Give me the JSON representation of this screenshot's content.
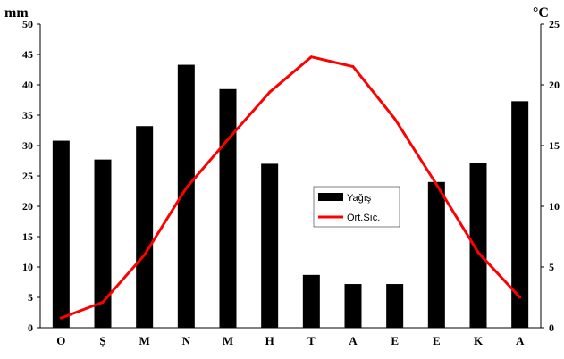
{
  "chart_data": {
    "type": "bar",
    "categories": [
      "O",
      "Ş",
      "M",
      "N",
      "M",
      "H",
      "T",
      "A",
      "E",
      "E",
      "K",
      "A"
    ],
    "series": [
      {
        "name": "Yağış",
        "type": "bar",
        "axis": "left",
        "color": "#000000",
        "values": [
          30.8,
          27.7,
          33.2,
          43.3,
          39.3,
          27.0,
          8.7,
          7.2,
          7.2,
          24.0,
          27.2,
          37.3
        ]
      },
      {
        "name": "Ort.Sıc.",
        "type": "line",
        "axis": "right",
        "color": "#ff0000",
        "values": [
          0.8,
          2.1,
          6.0,
          11.5,
          15.5,
          19.4,
          22.3,
          21.5,
          17.2,
          11.8,
          6.2,
          2.5
        ]
      }
    ],
    "y_left": {
      "unit_label": "mm",
      "ylim": [
        0,
        50
      ],
      "ticks": [
        "0",
        "5",
        "10",
        "15",
        "20",
        "25",
        "30",
        "35",
        "40",
        "45",
        "50"
      ]
    },
    "y_right": {
      "unit_label": "°C",
      "ylim": [
        0,
        25
      ],
      "ticks": [
        "0",
        "5",
        "10",
        "15",
        "20",
        "25"
      ]
    },
    "legend": {
      "placement": "center-right"
    },
    "grid": false
  }
}
